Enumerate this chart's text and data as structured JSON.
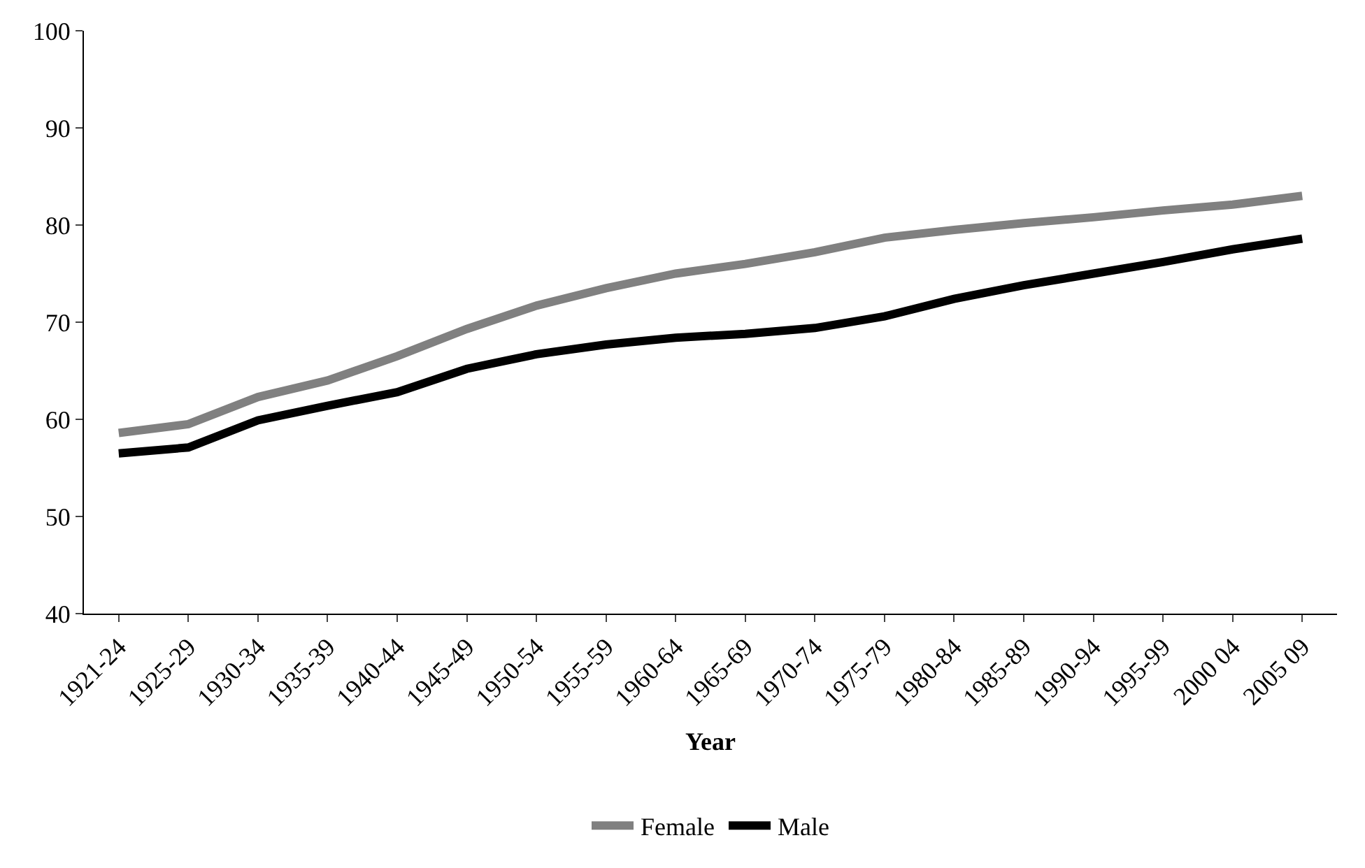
{
  "chart_data": {
    "type": "line",
    "xlabel": "Year",
    "categories": [
      "1921-24",
      "1925-29",
      "1930-34",
      "1935-39",
      "1940-44",
      "1945-49",
      "1950-54",
      "1955-59",
      "1960-64",
      "1965-69",
      "1970-74",
      "1975-79",
      "1980-84",
      "1985-89",
      "1990-94",
      "1995-99",
      "2000 04",
      "2005 09"
    ],
    "series": [
      {
        "name": "Female",
        "color": "#808080",
        "values": [
          58.6,
          59.5,
          62.3,
          64,
          66.5,
          69.3,
          71.7,
          73.5,
          75,
          76,
          77.2,
          78.7,
          79.5,
          80.2,
          80.8,
          81.5,
          82.1,
          83
        ]
      },
      {
        "name": "Male",
        "color": "#000000",
        "values": [
          56.5,
          57.1,
          59.9,
          61.4,
          62.8,
          65.2,
          66.7,
          67.7,
          68.4,
          68.8,
          69.4,
          70.6,
          72.4,
          73.8,
          75,
          76.2,
          77.5,
          78.6
        ]
      }
    ],
    "ylim": [
      40,
      100
    ],
    "yticks": [
      40,
      50,
      60,
      70,
      80,
      90,
      100
    ],
    "legend": "bottom",
    "marker": "none",
    "line_style": "solid"
  }
}
